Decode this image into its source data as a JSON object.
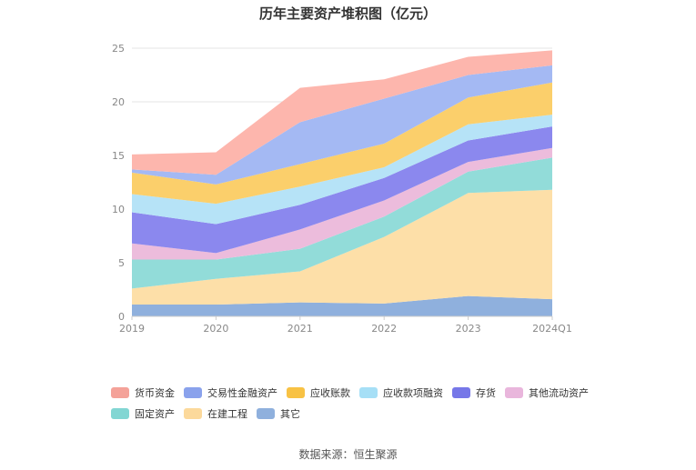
{
  "chart_data": {
    "type": "area",
    "stacked": true,
    "title": "历年主要资产堆积图（亿元）",
    "x": [
      "2019",
      "2020",
      "2021",
      "2022",
      "2023",
      "2024Q1"
    ],
    "ylim": [
      0,
      25
    ],
    "yticks": [
      0,
      5,
      10,
      15,
      20,
      25
    ],
    "grid": true,
    "legend_position": "bottom",
    "series": [
      {
        "name": "其它",
        "color": "#8fb0dd",
        "values": [
          1.1,
          1.1,
          1.3,
          1.2,
          1.9,
          1.6
        ]
      },
      {
        "name": "在建工程",
        "color": "#fddfa8",
        "values": [
          1.5,
          2.4,
          2.9,
          6.2,
          9.6,
          10.2
        ]
      },
      {
        "name": "固定资产",
        "color": "#92dcd9",
        "values": [
          2.7,
          1.8,
          2.1,
          1.9,
          2.0,
          3.0
        ]
      },
      {
        "name": "其他流动资产",
        "color": "#ecbcdc",
        "values": [
          1.5,
          0.6,
          1.8,
          1.5,
          0.9,
          0.9
        ]
      },
      {
        "name": "存货",
        "color": "#8b88ee",
        "values": [
          2.9,
          2.7,
          2.3,
          2.1,
          2.0,
          2.0
        ]
      },
      {
        "name": "应收款项融资",
        "color": "#b6e3f7",
        "values": [
          1.7,
          1.9,
          1.7,
          1.0,
          1.5,
          1.1
        ]
      },
      {
        "name": "应收账款",
        "color": "#fbcf6b",
        "values": [
          2.0,
          1.8,
          2.1,
          2.2,
          2.5,
          3.0
        ]
      },
      {
        "name": "交易性金融资产",
        "color": "#a4b9f3",
        "values": [
          0.3,
          0.9,
          3.9,
          4.2,
          2.1,
          1.6
        ]
      },
      {
        "name": "货币资金",
        "color": "#fdb6ad",
        "values": [
          1.4,
          2.1,
          3.2,
          1.8,
          1.7,
          1.4
        ]
      }
    ],
    "legend_order": [
      "货币资金",
      "交易性金融资产",
      "应收账款",
      "应收款项融资",
      "存货",
      "其他流动资产",
      "固定资产",
      "在建工程",
      "其它"
    ],
    "legend_colors": {
      "货币资金": "#f4a299",
      "交易性金融资产": "#8aa2ec",
      "应收账款": "#f8c244",
      "应收款项融资": "#a6dff6",
      "存货": "#7677e8",
      "其他流动资产": "#e9b6dc",
      "固定资产": "#82d6d3",
      "在建工程": "#fcd99b",
      "其它": "#8fb0dd"
    }
  },
  "source": "数据来源：恒生聚源"
}
